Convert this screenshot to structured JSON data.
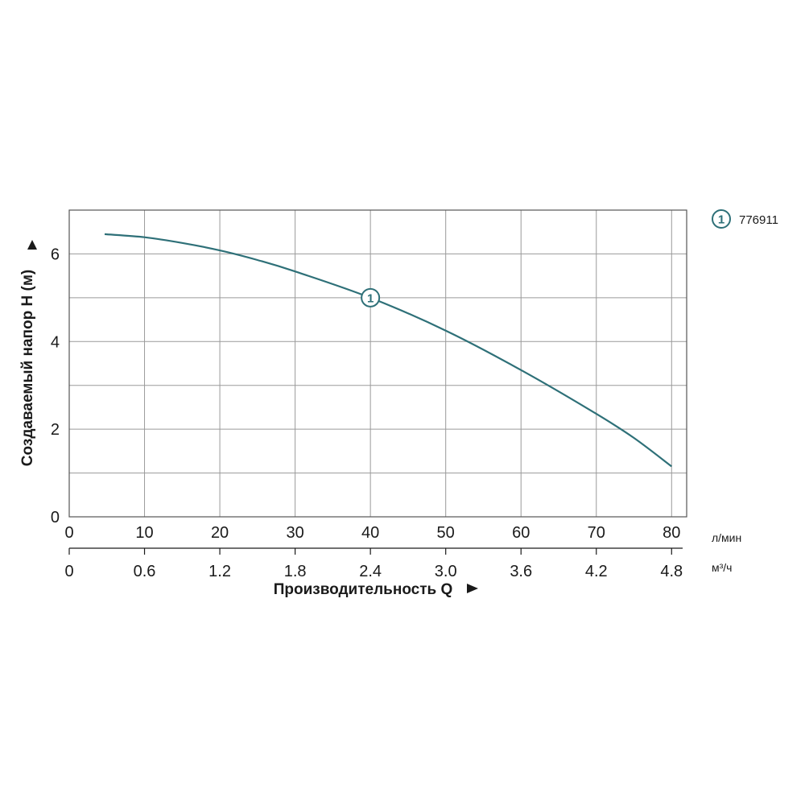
{
  "chart_data": {
    "type": "line",
    "xlabel": "Производительность Q",
    "ylabel": "Создаваемый напор H (м)",
    "x_unit": "л/мин",
    "x2_unit": "м³/ч",
    "xlim": [
      0,
      82
    ],
    "ylim": [
      0,
      7
    ],
    "x_ticks": [
      "0",
      "10",
      "20",
      "30",
      "40",
      "50",
      "60",
      "70",
      "80"
    ],
    "x_tick_values": [
      0,
      10,
      20,
      30,
      40,
      50,
      60,
      70,
      80
    ],
    "x2_ticks": [
      "0",
      "0.6",
      "1.2",
      "1.8",
      "2.4",
      "3.0",
      "3.6",
      "4.2",
      "4.8"
    ],
    "y_ticks": [
      "0",
      "2",
      "4",
      "6"
    ],
    "y_tick_values": [
      0,
      2,
      4,
      6
    ],
    "y_grid_values": [
      0,
      1,
      2,
      3,
      4,
      5,
      6,
      7
    ],
    "grid": true,
    "legend_position": "top-right",
    "series": [
      {
        "name": "776911",
        "marker_label": "1",
        "marker_at_x": 40,
        "color": "#2e7078",
        "x": [
          4.7,
          10,
          15,
          20,
          25,
          30,
          40,
          50,
          60,
          70,
          75,
          80
        ],
        "y": [
          6.45,
          6.38,
          6.25,
          6.08,
          5.86,
          5.6,
          5.0,
          4.25,
          3.35,
          2.35,
          1.8,
          1.15
        ]
      }
    ]
  }
}
